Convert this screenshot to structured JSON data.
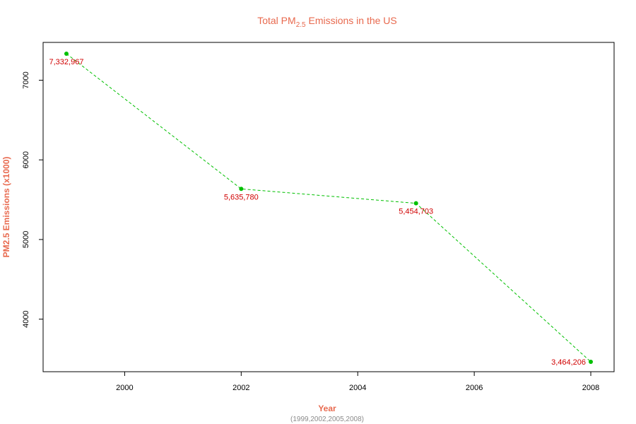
{
  "chart_data": {
    "type": "line",
    "title": {
      "prefix": "Total PM",
      "subscript": "2.5",
      "suffix": " Emissions in the US"
    },
    "xlabel": "Year",
    "xlabel_note": "(1999,2002,2005,2008)",
    "ylabel": "PM2.5 Emissions (x1000)",
    "x": [
      1999,
      2002,
      2005,
      2008
    ],
    "series": [
      {
        "values": [
          7332.967,
          5635.78,
          5454.703,
          3464.206
        ],
        "labels": [
          "7,332,967",
          "5,635,780",
          "5,454,703",
          "3,464,206"
        ],
        "color": "#00c000",
        "line_style": "dashed"
      }
    ],
    "xticks": [
      2000,
      2002,
      2004,
      2006,
      2008
    ],
    "xtick_labels": [
      "2000",
      "2002",
      "2004",
      "2006",
      "2008"
    ],
    "yticks": [
      4000,
      5000,
      6000,
      7000
    ],
    "ytick_labels": [
      "4000",
      "5000",
      "6000",
      "7000"
    ],
    "xlim": [
      1998.6,
      2008.4
    ],
    "ylim": [
      3340,
      7475
    ],
    "label_color": "#d00000",
    "title_color": "#e8694e",
    "grid": false,
    "legend": "none"
  }
}
